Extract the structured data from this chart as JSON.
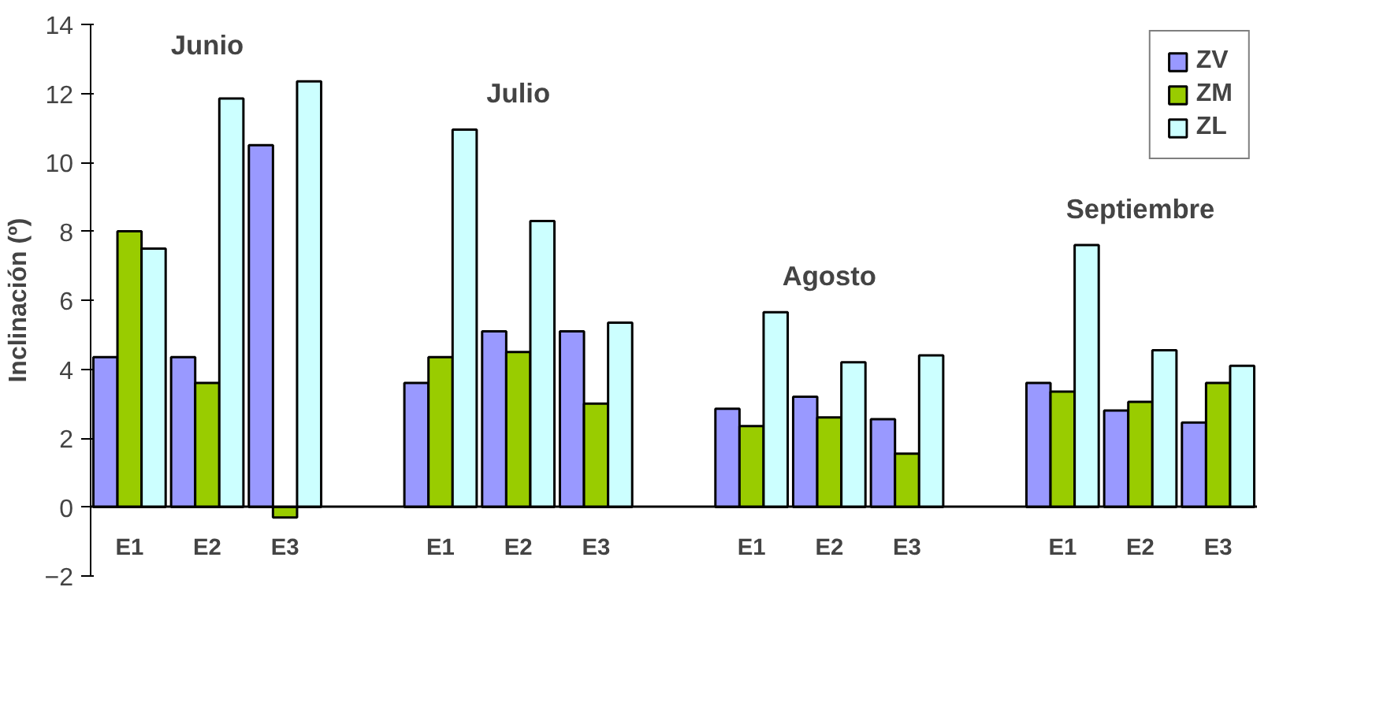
{
  "chart_data": {
    "type": "bar",
    "ylabel": "Inclinación (º)",
    "categories": [
      "E1",
      "E2",
      "E3",
      null,
      "E1",
      "E2",
      "E3",
      null,
      "E1",
      "E2",
      "E3",
      null,
      "E1",
      "E2",
      "E3"
    ],
    "series": [
      {
        "name": "ZV",
        "color": "#9999ff",
        "values": [
          4.35,
          4.35,
          10.5,
          null,
          3.6,
          5.1,
          5.1,
          null,
          2.85,
          3.2,
          2.55,
          null,
          3.6,
          2.8,
          2.45
        ]
      },
      {
        "name": "ZM",
        "color": "#99cc00",
        "values": [
          8.0,
          3.6,
          -0.3,
          null,
          4.35,
          4.5,
          3.0,
          null,
          2.35,
          2.6,
          1.55,
          null,
          3.35,
          3.05,
          3.6
        ]
      },
      {
        "name": "ZL",
        "color": "#ccffff",
        "values": [
          7.5,
          11.85,
          12.35,
          null,
          10.95,
          8.3,
          5.35,
          null,
          5.65,
          4.2,
          4.4,
          null,
          7.6,
          4.55,
          4.1
        ]
      }
    ],
    "annotations": [
      "Junio",
      "Julio",
      "Agosto",
      "Septiembre"
    ],
    "ylim": [
      -2,
      14
    ],
    "yticks": [
      -2,
      0,
      2,
      4,
      6,
      8,
      10,
      12,
      14
    ],
    "grid": false,
    "legend": "top right"
  }
}
